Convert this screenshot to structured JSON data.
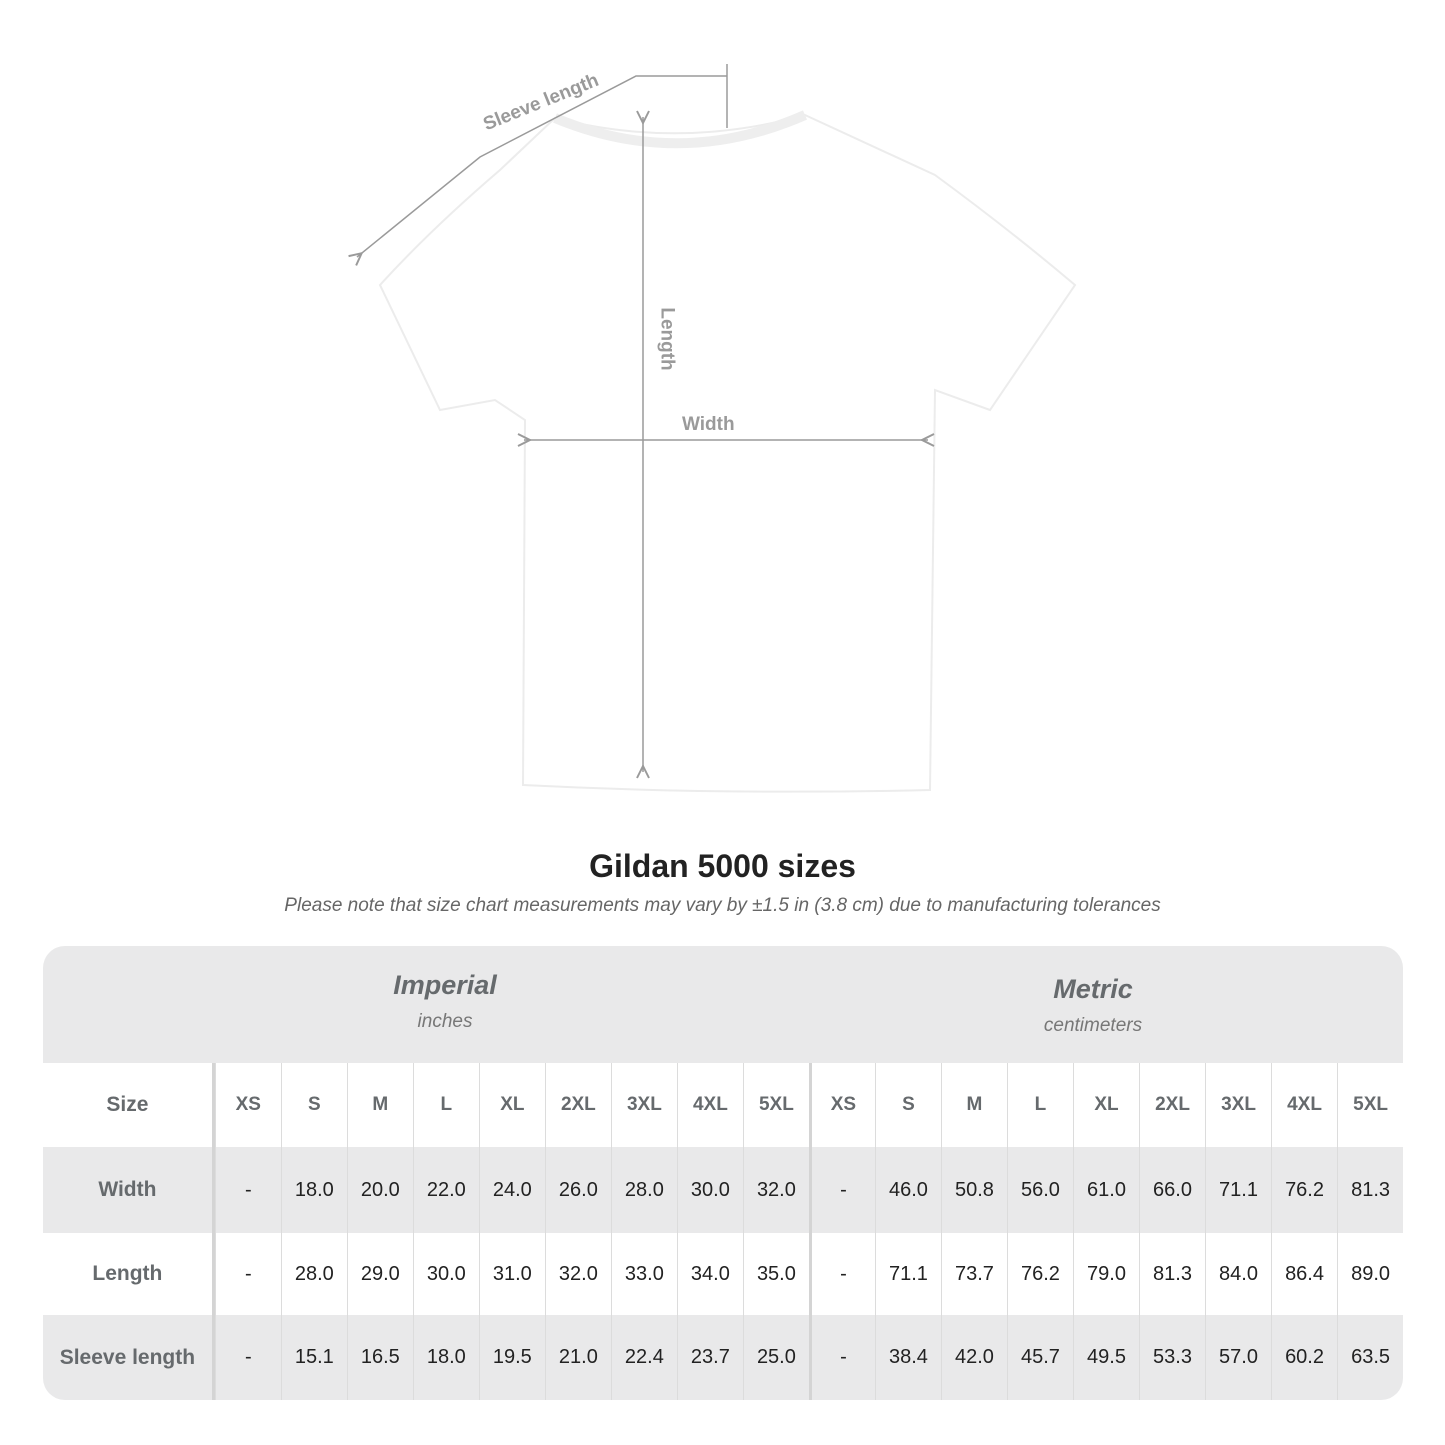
{
  "diagram": {
    "labels": {
      "sleeve_length": "Sleeve length",
      "length": "Length",
      "width": "Width"
    },
    "colors": {
      "shirt": "#ffffff",
      "measure_line": "#9a9a9a"
    }
  },
  "title": "Gildan 5000 sizes",
  "subtitle": "Please note that size chart measurements may vary by ±1.5 in (3.8 cm) due to manufacturing tolerances",
  "table": {
    "imperial": {
      "name": "Imperial",
      "unit": "inches"
    },
    "metric": {
      "name": "Metric",
      "unit": "centimeters"
    },
    "size_label": "Size",
    "sizes": [
      "XS",
      "S",
      "M",
      "L",
      "XL",
      "2XL",
      "3XL",
      "4XL",
      "5XL"
    ],
    "rows": [
      {
        "label": "Width",
        "imperial": [
          "-",
          "18.0",
          "20.0",
          "22.0",
          "24.0",
          "26.0",
          "28.0",
          "30.0",
          "32.0"
        ],
        "metric": [
          "-",
          "46.0",
          "50.8",
          "56.0",
          "61.0",
          "66.0",
          "71.1",
          "76.2",
          "81.3"
        ]
      },
      {
        "label": "Length",
        "imperial": [
          "-",
          "28.0",
          "29.0",
          "30.0",
          "31.0",
          "32.0",
          "33.0",
          "34.0",
          "35.0"
        ],
        "metric": [
          "-",
          "71.1",
          "73.7",
          "76.2",
          "79.0",
          "81.3",
          "84.0",
          "86.4",
          "89.0"
        ]
      },
      {
        "label": "Sleeve length",
        "imperial": [
          "-",
          "15.1",
          "16.5",
          "18.0",
          "19.5",
          "21.0",
          "22.4",
          "23.7",
          "25.0"
        ],
        "metric": [
          "-",
          "38.4",
          "42.0",
          "45.7",
          "49.5",
          "53.3",
          "57.0",
          "60.2",
          "63.5"
        ]
      }
    ]
  }
}
